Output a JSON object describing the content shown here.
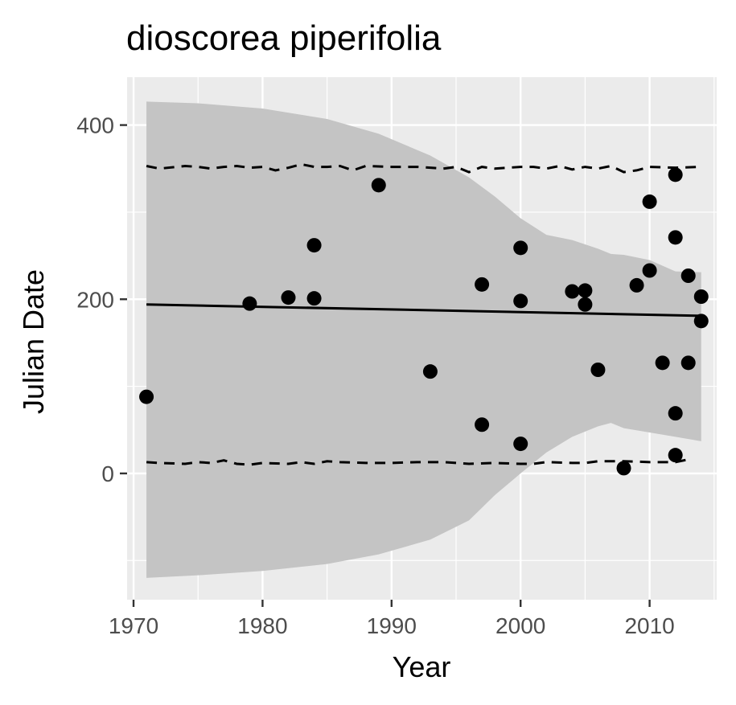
{
  "chart_data": {
    "type": "scatter",
    "title": "dioscorea piperifolia",
    "xlabel": "Year",
    "ylabel": "Julian Date",
    "xlim": [
      1969.5,
      2015.2
    ],
    "ylim": [
      -145,
      455
    ],
    "x_ticks": [
      1970,
      1980,
      1990,
      2000,
      2010
    ],
    "y_ticks": [
      0,
      200,
      400
    ],
    "grid": true,
    "legend": "none",
    "colors": {
      "panel": "#ebebeb",
      "grid": "#ffffff",
      "ribbon": "#c4c4c4",
      "points": "#000000",
      "line": "#000000",
      "tick_text": "#4d4d4d",
      "ticks": "#333333"
    },
    "points": [
      {
        "x": 1971,
        "y": 88
      },
      {
        "x": 1979,
        "y": 195
      },
      {
        "x": 1982,
        "y": 202
      },
      {
        "x": 1984,
        "y": 262
      },
      {
        "x": 1984,
        "y": 201
      },
      {
        "x": 1989,
        "y": 331
      },
      {
        "x": 1993,
        "y": 117
      },
      {
        "x": 1997,
        "y": 217
      },
      {
        "x": 1997,
        "y": 56
      },
      {
        "x": 2000,
        "y": 259
      },
      {
        "x": 2000,
        "y": 198
      },
      {
        "x": 2000,
        "y": 34
      },
      {
        "x": 2004,
        "y": 209
      },
      {
        "x": 2005,
        "y": 210
      },
      {
        "x": 2005,
        "y": 194
      },
      {
        "x": 2006,
        "y": 119
      },
      {
        "x": 2008,
        "y": 6
      },
      {
        "x": 2009,
        "y": 216
      },
      {
        "x": 2010,
        "y": 312
      },
      {
        "x": 2010,
        "y": 233
      },
      {
        "x": 2011,
        "y": 127
      },
      {
        "x": 2012,
        "y": 343
      },
      {
        "x": 2012,
        "y": 271
      },
      {
        "x": 2012,
        "y": 69
      },
      {
        "x": 2012,
        "y": 21
      },
      {
        "x": 2013,
        "y": 227
      },
      {
        "x": 2013,
        "y": 127
      },
      {
        "x": 2014,
        "y": 203
      },
      {
        "x": 2014,
        "y": 175
      }
    ],
    "trend_line": {
      "x": [
        1971,
        2014
      ],
      "y": [
        194,
        181
      ]
    },
    "confidence_band": {
      "x": [
        1971,
        1975,
        1980,
        1985,
        1989,
        1993,
        1996,
        1998,
        2000,
        2002,
        2004,
        2006,
        2007,
        2008,
        2010,
        2012,
        2014
      ],
      "upper": [
        427,
        425,
        419,
        407,
        390,
        365,
        340,
        318,
        293,
        274,
        268,
        258,
        252,
        251,
        245,
        232,
        231
      ],
      "lower": [
        -120,
        -117,
        -112,
        -104,
        -93,
        -76,
        -54,
        -25,
        0,
        24,
        42,
        54,
        58,
        52,
        47,
        42,
        37
      ]
    },
    "upper_dashed": {
      "x": [
        1971,
        1972,
        1974,
        1975,
        1976,
        1977,
        1978,
        1979,
        1980,
        1981,
        1982,
        1983,
        1984,
        1985,
        1986,
        1987,
        1988,
        1990,
        1992,
        1994,
        1995,
        1996,
        1997,
        1998,
        2000,
        2001,
        2002,
        2003,
        2004,
        2005,
        2006,
        2007,
        2008,
        2009,
        2010,
        2012,
        2014
      ],
      "y": [
        353,
        350,
        353,
        352,
        350,
        352,
        353,
        351,
        352,
        348,
        351,
        355,
        352,
        352,
        353,
        348,
        353,
        352,
        352,
        350,
        352,
        346,
        352,
        350,
        352,
        352,
        350,
        353,
        349,
        352,
        350,
        353,
        346,
        348,
        352,
        351,
        352
      ]
    },
    "lower_dashed": {
      "x": [
        1971,
        1972,
        1974,
        1975,
        1976,
        1977,
        1978,
        1979,
        1980,
        1982,
        1983,
        1984,
        1985,
        1986,
        1988,
        1990,
        1992,
        1994,
        1996,
        1998,
        2000,
        2001,
        2002,
        2004,
        2005,
        2006,
        2007,
        2008,
        2010,
        2012,
        2013
      ],
      "y": [
        13,
        12,
        11,
        13,
        12,
        15,
        11,
        10,
        12,
        11,
        13,
        11,
        14,
        13,
        12,
        12,
        13,
        13,
        11,
        12,
        11,
        11,
        13,
        12,
        12,
        14,
        14,
        14,
        13,
        13,
        16
      ]
    }
  }
}
